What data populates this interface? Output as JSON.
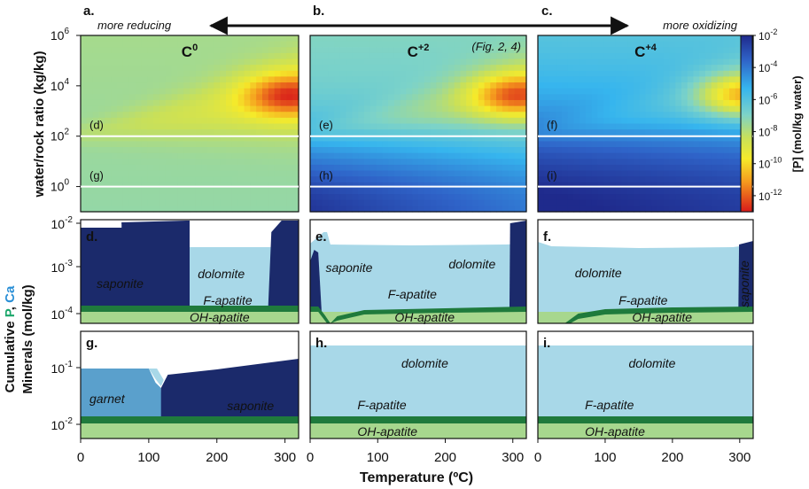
{
  "chart_data": {
    "type": "heatmap",
    "header": {
      "panel_letters": [
        "a.",
        "b.",
        "c."
      ],
      "left_note": "more reducing",
      "right_note": "more oxidizing"
    },
    "heatmaps": {
      "ylabel": "water/rock ratio (kg/kg)",
      "y_ticks": [
        "10",
        "10",
        "10",
        "10"
      ],
      "y_tick_exps": [
        "6",
        "4",
        "2",
        "0"
      ],
      "y_tick_values": [
        6,
        4,
        2,
        0
      ],
      "ylim_log10": [
        -1,
        6
      ],
      "xlim": [
        0,
        320
      ],
      "guide_lines_log10": [
        2,
        0
      ],
      "panels": [
        {
          "label": "C",
          "sup": "0",
          "note": "",
          "line_labels": [
            "(d)",
            "(g)"
          ]
        },
        {
          "label": "C",
          "sup": "+2",
          "note": "(Fig. 2, 4)",
          "line_labels": [
            "(e)",
            "(h)"
          ]
        },
        {
          "label": "C",
          "sup": "+4",
          "note": "",
          "line_labels": [
            "(f)",
            "(i)"
          ]
        }
      ]
    },
    "colorbar": {
      "label": "[P] (mol/kg water)",
      "tick_base": "10",
      "tick_exps": [
        "-2",
        "-4",
        "-6",
        "-8",
        "-10",
        "-12"
      ],
      "range_log10": [
        -2,
        -13
      ]
    },
    "minerals": {
      "ylabel_line1_parts": [
        "Cumulative ",
        "P",
        ", ",
        "Ca"
      ],
      "ylabel_line2": "Minerals (mol/kg)",
      "colors": {
        "P": "#1aa66a",
        "Ca": "#2a8fd6",
        "saponite": "#1b2a6b",
        "dolomite": "#a8d8e8",
        "garnet": "#5aa0cc",
        "f_apatite": "#1f7a3c",
        "oh_apatite": "#a7d78e"
      },
      "row1": {
        "y_ticks": [
          "10",
          "10",
          "10"
        ],
        "y_tick_exps": [
          "-2",
          "-3",
          "-4"
        ],
        "panels": [
          {
            "letter": "d.",
            "labels": {
              "saponite": "saponite",
              "dolomite": "dolomite",
              "f_apatite": "F-apatite",
              "oh_apatite": "OH-apatite"
            }
          },
          {
            "letter": "e.",
            "labels": {
              "saponite": "saponite",
              "dolomite": "dolomite",
              "f_apatite": "F-apatite",
              "oh_apatite": "OH-apatite"
            }
          },
          {
            "letter": "f.",
            "labels": {
              "saponite": "saponite",
              "dolomite": "dolomite",
              "f_apatite": "F-apatite",
              "oh_apatite": "OH-apatite"
            }
          }
        ]
      },
      "row2": {
        "y_ticks": [
          "10",
          "10"
        ],
        "y_tick_exps": [
          "-1",
          "-2"
        ],
        "panels": [
          {
            "letter": "g.",
            "labels": {
              "garnet": "garnet",
              "saponite": "saponite"
            }
          },
          {
            "letter": "h.",
            "labels": {
              "dolomite": "dolomite",
              "f_apatite": "F-apatite",
              "oh_apatite": "OH-apatite"
            }
          },
          {
            "letter": "i.",
            "labels": {
              "dolomite": "dolomite",
              "f_apatite": "F-apatite",
              "oh_apatite": "OH-apatite"
            }
          }
        ]
      }
    },
    "x_axis": {
      "label": "Temperature (ºC)",
      "ticks": [
        "0",
        "100",
        "200",
        "300"
      ],
      "tick_values": [
        0,
        100,
        200,
        300
      ],
      "xlim": [
        0,
        320
      ]
    }
  }
}
